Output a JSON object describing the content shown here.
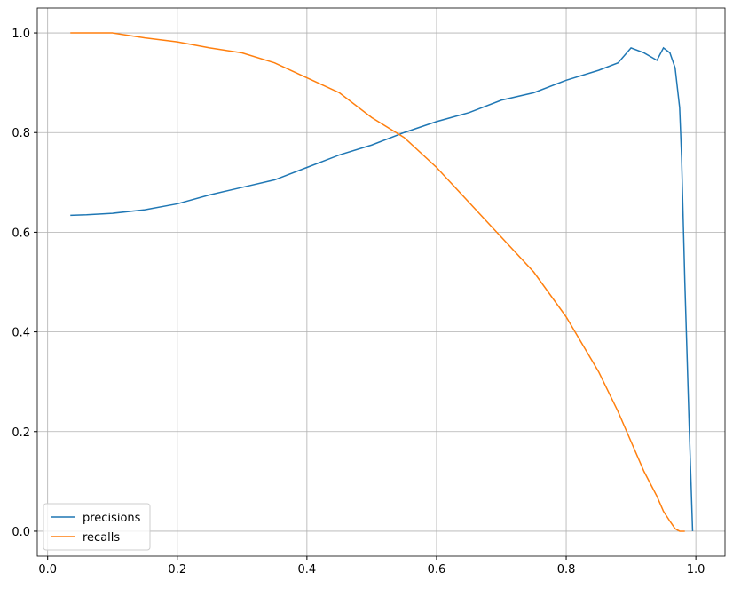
{
  "chart_data": {
    "type": "line",
    "x": [
      0.035,
      0.06,
      0.1,
      0.15,
      0.2,
      0.25,
      0.3,
      0.35,
      0.4,
      0.45,
      0.5,
      0.55,
      0.6,
      0.65,
      0.7,
      0.75,
      0.8,
      0.85,
      0.88,
      0.9,
      0.92,
      0.94,
      0.95,
      0.96,
      0.968,
      0.975,
      0.978,
      0.983,
      0.99,
      0.995
    ],
    "series": [
      {
        "name": "precisions",
        "color": "#1f77b4",
        "values": [
          0.634,
          0.635,
          0.638,
          0.645,
          0.657,
          0.675,
          0.69,
          0.705,
          0.73,
          0.755,
          0.775,
          0.8,
          0.822,
          0.84,
          0.865,
          0.88,
          0.905,
          0.925,
          0.94,
          0.97,
          0.96,
          0.945,
          0.97,
          0.96,
          0.93,
          0.85,
          0.75,
          0.5,
          0.2,
          0.0
        ]
      },
      {
        "name": "recalls",
        "color": "#ff7f0e",
        "values": [
          1.0,
          1.0,
          1.0,
          0.99,
          0.982,
          0.97,
          0.96,
          0.94,
          0.91,
          0.88,
          0.83,
          0.79,
          0.73,
          0.66,
          0.59,
          0.52,
          0.43,
          0.32,
          0.24,
          0.18,
          0.12,
          0.07,
          0.04,
          0.02,
          0.005,
          0.0,
          0.0,
          0.0,
          null,
          null
        ]
      }
    ],
    "xlim": [
      -0.016,
      1.045
    ],
    "ylim": [
      -0.05,
      1.05
    ],
    "xticks": [
      {
        "value": 0,
        "label": "0.0"
      },
      0.2,
      0.4,
      0.6,
      0.8,
      {
        "value": 1,
        "label": "1.0"
      }
    ],
    "yticks": [
      {
        "value": 0,
        "label": "0.0"
      },
      0.2,
      0.4,
      0.6,
      0.8,
      {
        "value": 1,
        "label": "1.0"
      }
    ],
    "grid": true,
    "legend": "lower left"
  }
}
